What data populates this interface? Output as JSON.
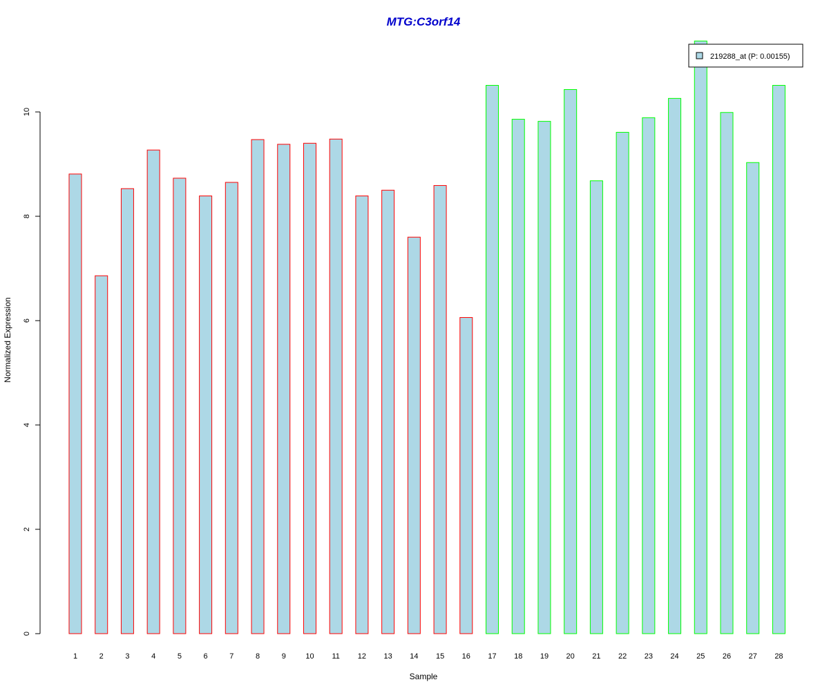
{
  "chart_data": {
    "type": "bar",
    "title": "MTG:C3orf14",
    "xlabel": "Sample",
    "ylabel": "Normalized Expression",
    "categories": [
      "1",
      "2",
      "3",
      "4",
      "5",
      "6",
      "7",
      "8",
      "9",
      "10",
      "11",
      "12",
      "13",
      "14",
      "15",
      "16",
      "17",
      "18",
      "19",
      "20",
      "21",
      "22",
      "23",
      "24",
      "25",
      "26",
      "27",
      "28"
    ],
    "series": [
      {
        "name": "219288_at (P: 0.00155)",
        "values": [
          8.81,
          6.86,
          8.53,
          9.27,
          8.73,
          8.39,
          8.65,
          9.47,
          9.38,
          9.4,
          9.48,
          8.39,
          8.5,
          7.6,
          8.59,
          6.06,
          10.51,
          9.86,
          9.82,
          10.43,
          8.68,
          9.61,
          9.89,
          10.26,
          11.36,
          9.99,
          9.03,
          10.51
        ]
      }
    ],
    "bar_fill": "#add8e6",
    "group_border_colors": [
      "#ff0000",
      "#ff0000",
      "#ff0000",
      "#ff0000",
      "#ff0000",
      "#ff0000",
      "#ff0000",
      "#ff0000",
      "#ff0000",
      "#ff0000",
      "#ff0000",
      "#ff0000",
      "#ff0000",
      "#ff0000",
      "#ff0000",
      "#ff0000",
      "#00ff00",
      "#00ff00",
      "#00ff00",
      "#00ff00",
      "#00ff00",
      "#00ff00",
      "#00ff00",
      "#00ff00",
      "#00ff00",
      "#00ff00",
      "#00ff00",
      "#00ff00"
    ],
    "title_color": "#0000cc",
    "yticks": [
      0,
      2,
      4,
      6,
      8,
      10
    ],
    "ylim": [
      0,
      11.36
    ],
    "legend": {
      "placement": "top-right",
      "label": "219288_at (P: 0.00155)"
    },
    "grid": false
  }
}
